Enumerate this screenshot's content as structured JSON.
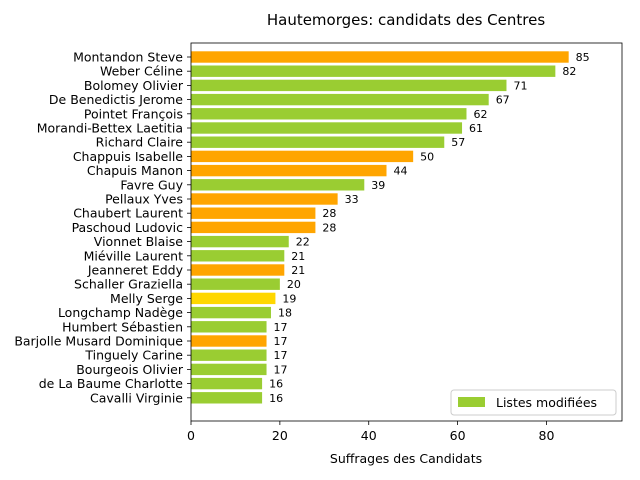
{
  "chart_data": {
    "type": "bar",
    "orientation": "horizontal",
    "title": "Hautemorges: candidats des Centres",
    "xlabel": "Suffrages des Candidats",
    "ylabel": "",
    "xlim": [
      0,
      97
    ],
    "xticks": [
      0,
      20,
      40,
      60,
      80
    ],
    "grid": false,
    "legend": {
      "label": "Listes modifiées",
      "color": "#9acd32",
      "placement": "lower-right"
    },
    "bars": [
      {
        "name": "Montandon Steve",
        "value": 85,
        "color": "#ffa500"
      },
      {
        "name": "Weber Céline",
        "value": 82,
        "color": "#9acd32"
      },
      {
        "name": "Bolomey Olivier",
        "value": 71,
        "color": "#9acd32"
      },
      {
        "name": "De Benedictis Jerome",
        "value": 67,
        "color": "#9acd32"
      },
      {
        "name": "Pointet François",
        "value": 62,
        "color": "#9acd32"
      },
      {
        "name": "Morandi-Bettex Laetitia",
        "value": 61,
        "color": "#9acd32"
      },
      {
        "name": "Richard Claire",
        "value": 57,
        "color": "#9acd32"
      },
      {
        "name": "Chappuis Isabelle",
        "value": 50,
        "color": "#ffa500"
      },
      {
        "name": "Chapuis Manon",
        "value": 44,
        "color": "#ffa500"
      },
      {
        "name": "Favre Guy",
        "value": 39,
        "color": "#9acd32"
      },
      {
        "name": "Pellaux Yves",
        "value": 33,
        "color": "#ffa500"
      },
      {
        "name": "Chaubert Laurent",
        "value": 28,
        "color": "#ffa500"
      },
      {
        "name": "Paschoud Ludovic",
        "value": 28,
        "color": "#ffa500"
      },
      {
        "name": "Vionnet Blaise",
        "value": 22,
        "color": "#9acd32"
      },
      {
        "name": "Miéville Laurent",
        "value": 21,
        "color": "#9acd32"
      },
      {
        "name": "Jeanneret Eddy",
        "value": 21,
        "color": "#ffa500"
      },
      {
        "name": "Schaller Graziella",
        "value": 20,
        "color": "#9acd32"
      },
      {
        "name": "Melly Serge",
        "value": 19,
        "color": "#ffd700"
      },
      {
        "name": "Longchamp Nadège",
        "value": 18,
        "color": "#9acd32"
      },
      {
        "name": "Humbert Sébastien",
        "value": 17,
        "color": "#9acd32"
      },
      {
        "name": "Barjolle Musard Dominique",
        "value": 17,
        "color": "#ffa500"
      },
      {
        "name": "Tinguely Carine",
        "value": 17,
        "color": "#9acd32"
      },
      {
        "name": "Bourgeois Olivier",
        "value": 17,
        "color": "#9acd32"
      },
      {
        "name": "de La Baume Charlotte",
        "value": 16,
        "color": "#9acd32"
      },
      {
        "name": "Cavalli Virginie",
        "value": 16,
        "color": "#9acd32"
      }
    ]
  }
}
